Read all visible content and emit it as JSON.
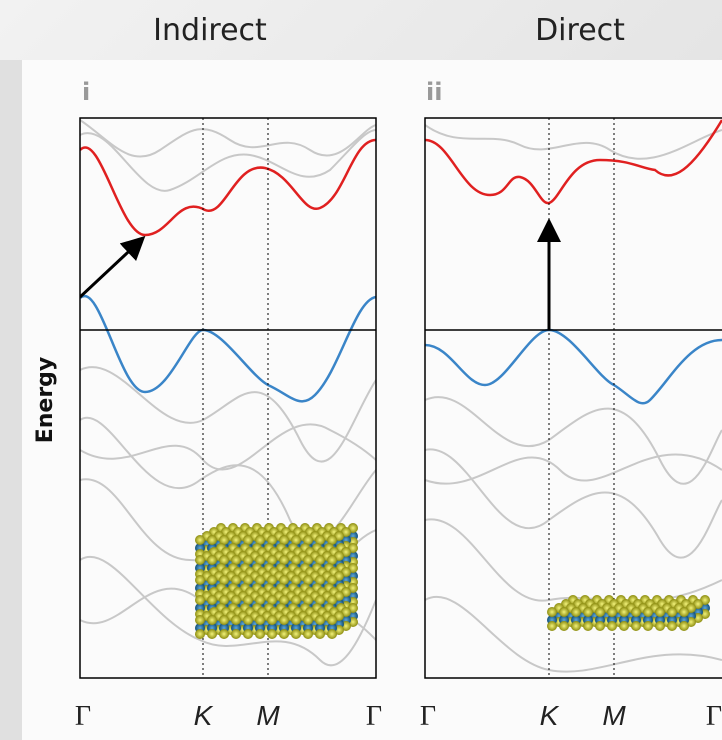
{
  "y_axis_label": "Energy",
  "panels": [
    {
      "title": "Indirect",
      "label": "i",
      "ticks": [
        "Γ",
        "K",
        "M",
        "Γ"
      ]
    },
    {
      "title": "Direct",
      "label": "ii",
      "ticks": [
        "Γ",
        "K",
        "M",
        "Γ"
      ]
    }
  ]
}
